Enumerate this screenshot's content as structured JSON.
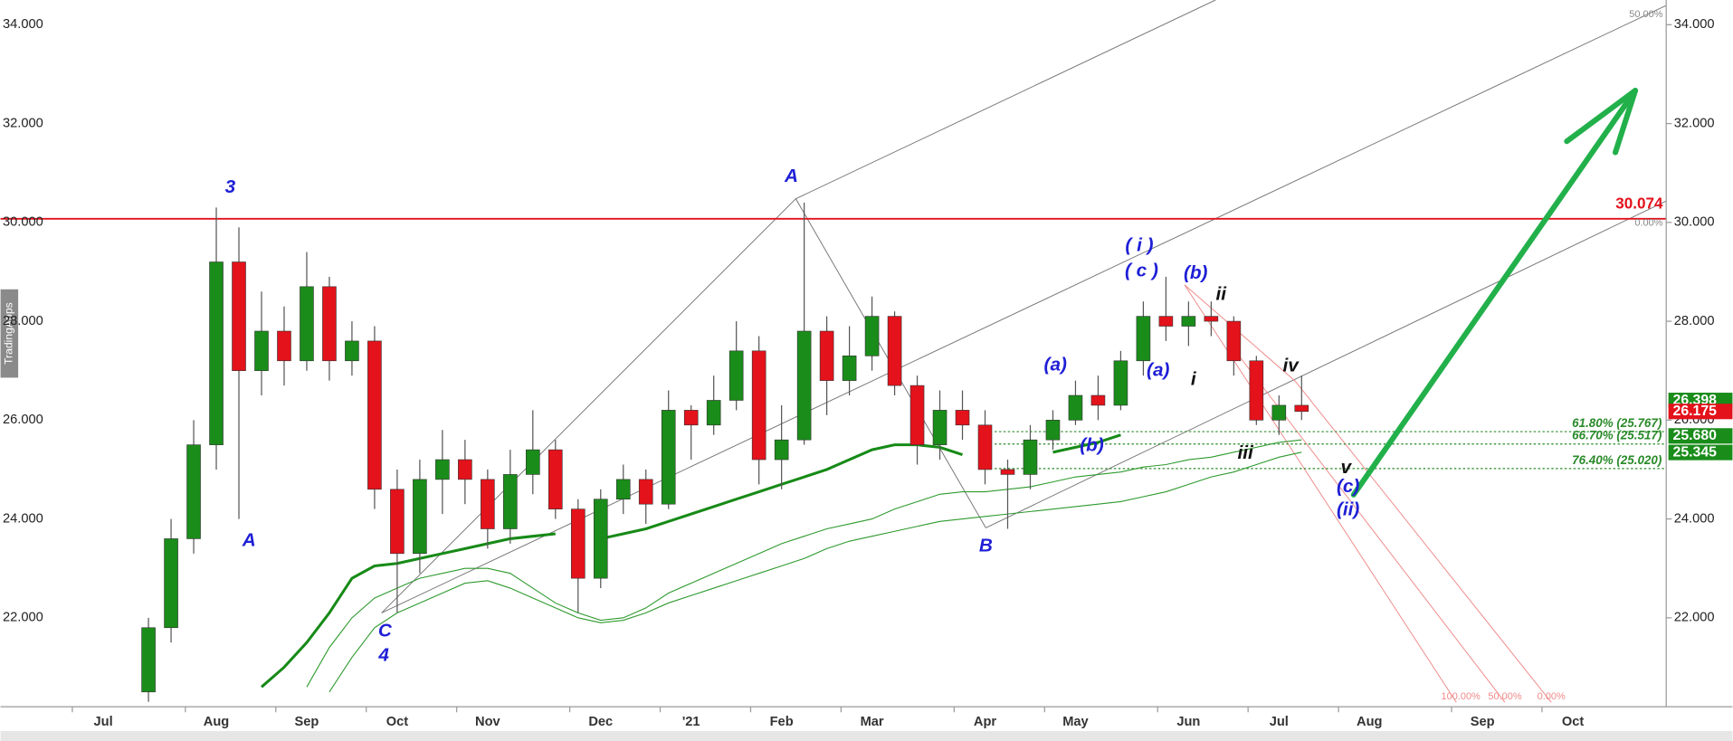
{
  "chart_data": {
    "type": "candlestick",
    "categories": [
      "Jul",
      null,
      null,
      null,
      null,
      "Aug",
      null,
      null,
      null,
      "Sep",
      null,
      null,
      null,
      "Oct",
      null,
      null,
      null,
      "Nov",
      null,
      null,
      null,
      null,
      "Dec",
      null,
      null,
      null,
      "'21",
      null,
      null,
      null,
      "Feb",
      null,
      null,
      null,
      "Mar",
      null,
      null,
      null,
      null,
      "Apr",
      null,
      null,
      null,
      "May",
      null,
      null,
      null,
      null,
      "Jun",
      null,
      null,
      null,
      "Jul",
      null,
      null,
      null,
      "Aug",
      null,
      null,
      null,
      null,
      "Sep",
      null,
      null,
      null,
      "Oct",
      null,
      null,
      null
    ],
    "open": [
      null,
      null,
      20.5,
      21.8,
      23.6,
      25.5,
      29.2,
      27.0,
      27.8,
      27.2,
      28.7,
      27.2,
      27.6,
      24.6,
      23.3,
      24.8,
      25.2,
      24.8,
      23.8,
      24.9,
      25.4,
      24.2,
      22.8,
      24.4,
      24.8,
      24.3,
      26.2,
      25.9,
      26.4,
      27.4,
      25.2,
      25.6,
      27.8,
      26.8,
      27.3,
      28.1,
      26.7,
      25.5,
      26.2,
      25.9,
      25.0,
      24.9,
      25.6,
      26.0,
      26.5,
      26.3,
      27.2,
      28.1,
      27.9,
      28.1,
      28.0,
      27.2,
      26.0,
      26.3,
      null,
      null,
      null,
      null,
      null,
      null,
      null,
      null,
      null,
      null,
      null,
      null,
      null,
      null,
      null
    ],
    "high": [
      null,
      null,
      22.0,
      24.0,
      26.0,
      30.3,
      29.9,
      28.6,
      28.3,
      29.4,
      28.9,
      28.0,
      27.9,
      25.0,
      25.2,
      25.8,
      25.6,
      25.0,
      25.4,
      26.2,
      25.6,
      24.4,
      24.6,
      25.1,
      25.0,
      26.6,
      26.3,
      26.9,
      28.0,
      27.7,
      26.3,
      30.4,
      28.1,
      27.9,
      28.5,
      28.2,
      26.9,
      26.6,
      26.6,
      26.2,
      25.2,
      25.9,
      26.2,
      26.8,
      26.9,
      27.4,
      28.4,
      28.9,
      28.4,
      28.4,
      28.1,
      27.3,
      26.5,
      26.9,
      null,
      null,
      null,
      null,
      null,
      null,
      null,
      null,
      null,
      null,
      null,
      null,
      null,
      null,
      null
    ],
    "low": [
      null,
      null,
      20.3,
      21.5,
      23.3,
      25.0,
      24.0,
      26.5,
      26.7,
      27.0,
      26.8,
      26.9,
      24.2,
      22.1,
      22.9,
      24.1,
      24.3,
      23.4,
      23.5,
      24.5,
      24.0,
      22.1,
      22.6,
      24.1,
      23.9,
      24.2,
      25.2,
      25.7,
      26.2,
      24.7,
      24.6,
      25.5,
      26.1,
      26.5,
      27.0,
      26.5,
      25.1,
      25.2,
      25.6,
      24.7,
      23.8,
      24.6,
      25.4,
      25.9,
      26.0,
      26.2,
      26.9,
      27.6,
      27.5,
      27.7,
      26.9,
      25.9,
      25.7,
      26.0,
      null,
      null,
      null,
      null,
      null,
      null,
      null,
      null,
      null,
      null,
      null,
      null,
      null,
      null,
      null
    ],
    "close": [
      null,
      null,
      21.8,
      23.6,
      25.5,
      29.2,
      27.0,
      27.8,
      27.2,
      28.7,
      27.2,
      27.6,
      24.6,
      23.3,
      24.8,
      25.2,
      24.8,
      23.8,
      24.9,
      25.4,
      24.2,
      22.8,
      24.4,
      24.8,
      24.3,
      26.2,
      25.9,
      26.4,
      27.4,
      25.2,
      25.6,
      27.8,
      26.8,
      27.3,
      28.1,
      26.7,
      25.5,
      26.2,
      25.9,
      25.0,
      24.9,
      25.6,
      26.0,
      26.5,
      26.3,
      27.2,
      28.1,
      27.9,
      28.1,
      28.0,
      27.2,
      26.0,
      26.3,
      26.175,
      null,
      null,
      null,
      null,
      null,
      null,
      null,
      null,
      null,
      null,
      null,
      null,
      null,
      null,
      null
    ],
    "up_color": "#1a8c1a",
    "down_color": "#e3121b",
    "ylim": [
      20.2,
      34.5
    ],
    "yticks": [
      {
        "value": 22,
        "label": "22.000"
      },
      {
        "value": 24,
        "label": "24.000"
      },
      {
        "value": 26,
        "label": "26.000"
      },
      {
        "value": 28,
        "label": "28.000"
      },
      {
        "value": 30,
        "label": "30.000"
      },
      {
        "value": 32,
        "label": "32.000"
      },
      {
        "value": 34,
        "label": "34.000"
      }
    ],
    "moving_averages": [
      {
        "color": "#178a17",
        "values": [
          null,
          null,
          null,
          null,
          null,
          null,
          null,
          20.6,
          21.0,
          21.5,
          22.1,
          22.8,
          23.05,
          23.1,
          23.2,
          23.3,
          23.4,
          23.5,
          23.6,
          23.65,
          23.7,
          null,
          23.6,
          23.7,
          23.8,
          23.95,
          24.1,
          24.25,
          24.4,
          24.55,
          24.7,
          24.85,
          25.0,
          25.2,
          25.4,
          25.5,
          25.5,
          25.45,
          25.3,
          null,
          null,
          null,
          25.35,
          25.45,
          25.55,
          25.7,
          null,
          null,
          null,
          null,
          null,
          null,
          null,
          null,
          null,
          null,
          null,
          null,
          null,
          null,
          null,
          null,
          null,
          null,
          null,
          null,
          null,
          null,
          null
        ]
      },
      {
        "color": "#2e9a2e",
        "values": [
          null,
          null,
          null,
          null,
          null,
          null,
          null,
          null,
          null,
          20.6,
          21.4,
          22.0,
          22.4,
          22.6,
          22.8,
          22.9,
          23.0,
          23.0,
          22.9,
          22.6,
          22.3,
          22.1,
          21.95,
          22.0,
          22.2,
          22.5,
          22.7,
          22.9,
          23.1,
          23.3,
          23.5,
          23.65,
          23.8,
          23.9,
          24.0,
          24.2,
          24.35,
          24.5,
          24.55,
          24.55,
          24.6,
          24.65,
          24.75,
          24.85,
          24.9,
          24.95,
          25.05,
          25.1,
          25.2,
          25.25,
          25.35,
          25.45,
          25.55,
          25.6,
          null,
          null,
          null,
          null,
          null,
          null,
          null,
          null,
          null,
          null,
          null,
          null,
          null,
          null,
          null
        ]
      },
      {
        "color": "#2e9a2e",
        "values": [
          null,
          null,
          null,
          null,
          null,
          null,
          null,
          null,
          null,
          null,
          20.5,
          21.2,
          21.8,
          22.1,
          22.3,
          22.5,
          22.7,
          22.75,
          22.6,
          22.4,
          22.2,
          22.0,
          21.9,
          21.95,
          22.1,
          22.3,
          22.45,
          22.6,
          22.75,
          22.9,
          23.05,
          23.2,
          23.4,
          23.55,
          23.65,
          23.75,
          23.85,
          23.95,
          24.0,
          24.05,
          24.1,
          24.15,
          24.2,
          24.25,
          24.3,
          24.35,
          24.45,
          24.55,
          24.7,
          24.85,
          24.95,
          25.1,
          25.25,
          25.35,
          null,
          null,
          null,
          null,
          null,
          null,
          null,
          null,
          null,
          null,
          null,
          null,
          null,
          null,
          null
        ]
      }
    ],
    "resistance": {
      "value": 30.074,
      "color": "#e3121b"
    },
    "fib_color": "#2a8a2a",
    "fib_levels": [
      {
        "value": 25.767,
        "label": "61.80% (25.767)"
      },
      {
        "value": 25.517,
        "label": "66.70% (25.517)"
      },
      {
        "value": 25.02,
        "label": "76.40% (25.020)"
      }
    ],
    "price_labels": [
      {
        "value": 26.398,
        "label": "26.398",
        "color": "#1a8c1a"
      },
      {
        "value": 26.175,
        "label": "26.175",
        "color": "#e3121b"
      },
      {
        "value": 25.68,
        "label": "25.680",
        "color": "#1a8c1a"
      },
      {
        "value": 25.345,
        "label": "25.345",
        "color": "#1a8c1a"
      }
    ],
    "annotations": [
      {
        "text": "3",
        "color": "#1f1fd6"
      },
      {
        "text": "A",
        "color": "#1f1fd6"
      },
      {
        "text": "C",
        "color": "#1f1fd6"
      },
      {
        "text": "4",
        "color": "#1f1fd6"
      },
      {
        "text": "A",
        "color": "#1f1fd6"
      },
      {
        "text": "B",
        "color": "#1f1fd6"
      },
      {
        "text": "(a)",
        "color": "#1f1fd6"
      },
      {
        "text": "(b)",
        "color": "#1f1fd6"
      },
      {
        "text": "(a)",
        "color": "#1f1fd6"
      },
      {
        "text": "( i )",
        "color": "#1f1fd6"
      },
      {
        "text": "( c )",
        "color": "#1f1fd6"
      },
      {
        "text": "(b)",
        "color": "#1f1fd6"
      },
      {
        "text": "ii",
        "color": "#111111"
      },
      {
        "text": "i",
        "color": "#111111"
      },
      {
        "text": "iii",
        "color": "#111111"
      },
      {
        "text": "iv",
        "color": "#111111"
      },
      {
        "text": "v",
        "color": "#111111"
      },
      {
        "text": "(c)",
        "color": "#1f1fd6"
      },
      {
        "text": "(ii)",
        "color": "#1f1fd6"
      }
    ],
    "channel_labels": [
      "50.00%",
      "0.00%"
    ],
    "pitchfork_labels": [
      "100.00%",
      "50.00%",
      "0.00%"
    ],
    "watermark": "TradingApps"
  }
}
